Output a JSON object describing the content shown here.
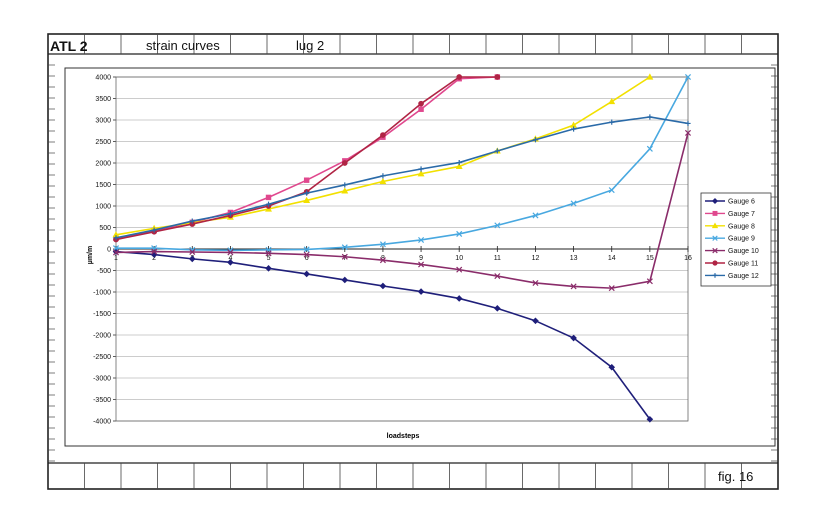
{
  "header": {
    "project": "ATL 2",
    "subject": "strain curves",
    "part": "lug 2",
    "figure": "fig. 16"
  },
  "colors": {
    "page": "#ffffff",
    "frame": "#222222",
    "chart_bg": "#ffffff"
  },
  "chart_data": {
    "type": "line",
    "title": "",
    "xlabel": "loadsteps",
    "ylabel": "µm/m",
    "ylim": [
      -4000,
      4000
    ],
    "ytick_step": 500,
    "xlim": [
      1,
      16
    ],
    "categories": [
      1,
      2,
      3,
      4,
      5,
      6,
      7,
      8,
      9,
      10,
      11,
      12,
      13,
      14,
      15,
      16
    ],
    "grid": "horizontal",
    "legend": "right",
    "series": [
      {
        "name": "Gauge  6",
        "color": "#1f1f7a",
        "marker": "diamond",
        "values": [
          -60,
          -130,
          -230,
          -310,
          -450,
          -580,
          -720,
          -860,
          -990,
          -1150,
          -1380,
          -1670,
          -2070,
          -2750,
          -3960,
          null
        ]
      },
      {
        "name": "Gauge  7",
        "color": "#e0488e",
        "marker": "square",
        "values": [
          250,
          430,
          620,
          850,
          1200,
          1600,
          2050,
          2600,
          3250,
          3960,
          4000,
          null,
          null,
          null,
          null,
          null
        ]
      },
      {
        "name": "Gauge  8",
        "color": "#f2e000",
        "marker": "triangle",
        "values": [
          330,
          480,
          610,
          740,
          930,
          1130,
          1350,
          1570,
          1750,
          1920,
          2280,
          2560,
          2880,
          3430,
          4000,
          null
        ]
      },
      {
        "name": "Gauge  9",
        "color": "#48a8e0",
        "marker": "x",
        "values": [
          20,
          20,
          -20,
          -30,
          -20,
          -10,
          40,
          110,
          210,
          350,
          550,
          780,
          1060,
          1370,
          2330,
          4000
        ]
      },
      {
        "name": "Gauge  10",
        "color": "#8a2c6a",
        "marker": "x",
        "values": [
          -80,
          -60,
          -70,
          -80,
          -100,
          -130,
          -180,
          -260,
          -360,
          -480,
          -630,
          -790,
          -870,
          -910,
          -750,
          2700
        ]
      },
      {
        "name": "Gauge  11",
        "color": "#b02444",
        "marker": "circle",
        "values": [
          220,
          400,
          580,
          780,
          1000,
          1330,
          2000,
          2650,
          3380,
          4000,
          4000,
          null,
          null,
          null,
          null,
          null
        ]
      },
      {
        "name": "Gauge  12",
        "color": "#2a6aa8",
        "marker": "plus",
        "values": [
          260,
          440,
          650,
          820,
          1040,
          1300,
          1490,
          1700,
          1860,
          2010,
          2280,
          2540,
          2790,
          2950,
          3070,
          2920
        ]
      }
    ]
  }
}
